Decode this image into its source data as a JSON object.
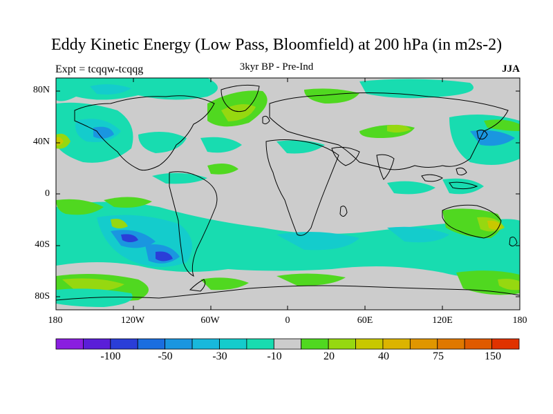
{
  "title": "Eddy Kinetic Energy (Low Pass, Bloomfield) at 200 hPa (in m2s-2)",
  "experiment": "Expt = tcqqw-tcqqg",
  "subtitle": "3kyr BP - Pre-Ind",
  "season": "JJA",
  "lat_ticks": [
    "80N",
    "40N",
    "0",
    "40S",
    "80S"
  ],
  "lon_ticks": [
    "180",
    "120W",
    "60W",
    "0",
    "60E",
    "120E",
    "180"
  ],
  "colorbar": {
    "colors": [
      "#8a1ee0",
      "#5a1ed8",
      "#2a3ed8",
      "#1a6ee0",
      "#1a96e0",
      "#18b8dc",
      "#14cccc",
      "#18dcb0",
      "#cccccc",
      "#50d820",
      "#96d810",
      "#c8c800",
      "#dcb400",
      "#e09600",
      "#e07800",
      "#e05a00",
      "#e03200"
    ],
    "labels": [
      "-100",
      "-50",
      "-30",
      "-10",
      "20",
      "40",
      "75",
      "150"
    ]
  },
  "colors": {
    "land_mask": "#cccccc",
    "positive_low": "#50d820",
    "positive_mid": "#96d810",
    "positive_high": "#c8c800",
    "negative_low": "#18dcb0",
    "negative_mid": "#14cccc",
    "negative_high": "#1a96e0",
    "negative_strong": "#2a3ed8"
  }
}
